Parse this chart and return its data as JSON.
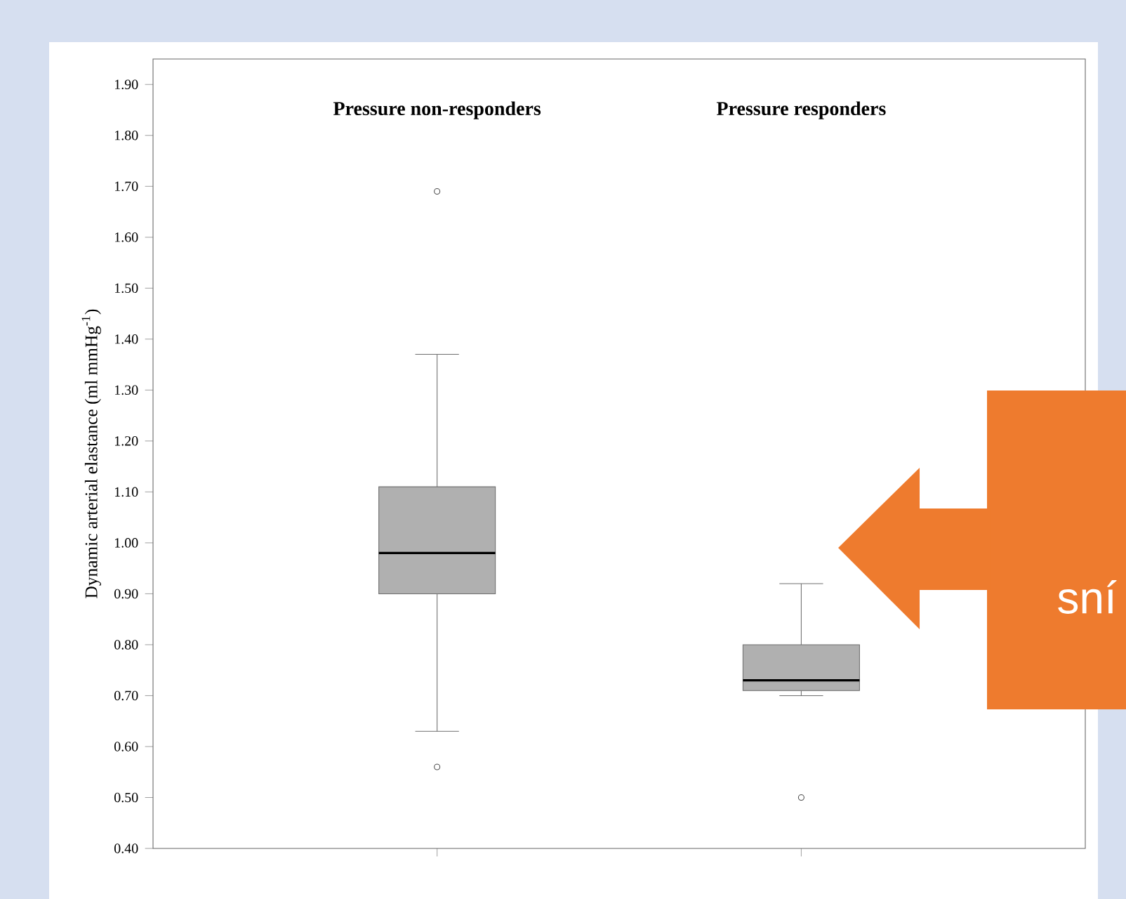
{
  "chart_data": {
    "type": "box",
    "categories": [
      "Pressure non-responders",
      "Pressure responders"
    ],
    "ylabel": "Dynamic arterial elastance (ml mmHg$^{-1}$)",
    "ylim": [
      0.4,
      1.95
    ],
    "yticks": [
      {
        "value": 0.4,
        "label": "0.40"
      },
      {
        "value": 0.5,
        "label": "0.50"
      },
      {
        "value": 0.6,
        "label": "0.60"
      },
      {
        "value": 0.7,
        "label": "0.70"
      },
      {
        "value": 0.8,
        "label": "0.80"
      },
      {
        "value": 0.9,
        "label": "0.90"
      },
      {
        "value": 1.0,
        "label": "1.00"
      },
      {
        "value": 1.1,
        "label": "1.10"
      },
      {
        "value": 1.2,
        "label": "1.20"
      },
      {
        "value": 1.3,
        "label": "1.30"
      },
      {
        "value": 1.4,
        "label": "1.40"
      },
      {
        "value": 1.5,
        "label": "1.50"
      },
      {
        "value": 1.6,
        "label": "1.60"
      },
      {
        "value": 1.7,
        "label": "1.70"
      },
      {
        "value": 1.8,
        "label": "1.80"
      },
      {
        "value": 1.9,
        "label": "1.90"
      }
    ],
    "series": [
      {
        "color": "#b0b0b0",
        "boxes": [
          {
            "low": 0.63,
            "q1": 0.9,
            "median": 0.98,
            "q3": 1.11,
            "high": 1.37,
            "outliers": [
              1.69,
              0.56
            ]
          },
          {
            "low": 0.7,
            "q1": 0.71,
            "median": 0.73,
            "q3": 0.8,
            "high": 0.92,
            "outliers": [
              0.5
            ]
          }
        ]
      }
    ],
    "marker": "circle",
    "annotations": [
      "sní"
    ]
  }
}
